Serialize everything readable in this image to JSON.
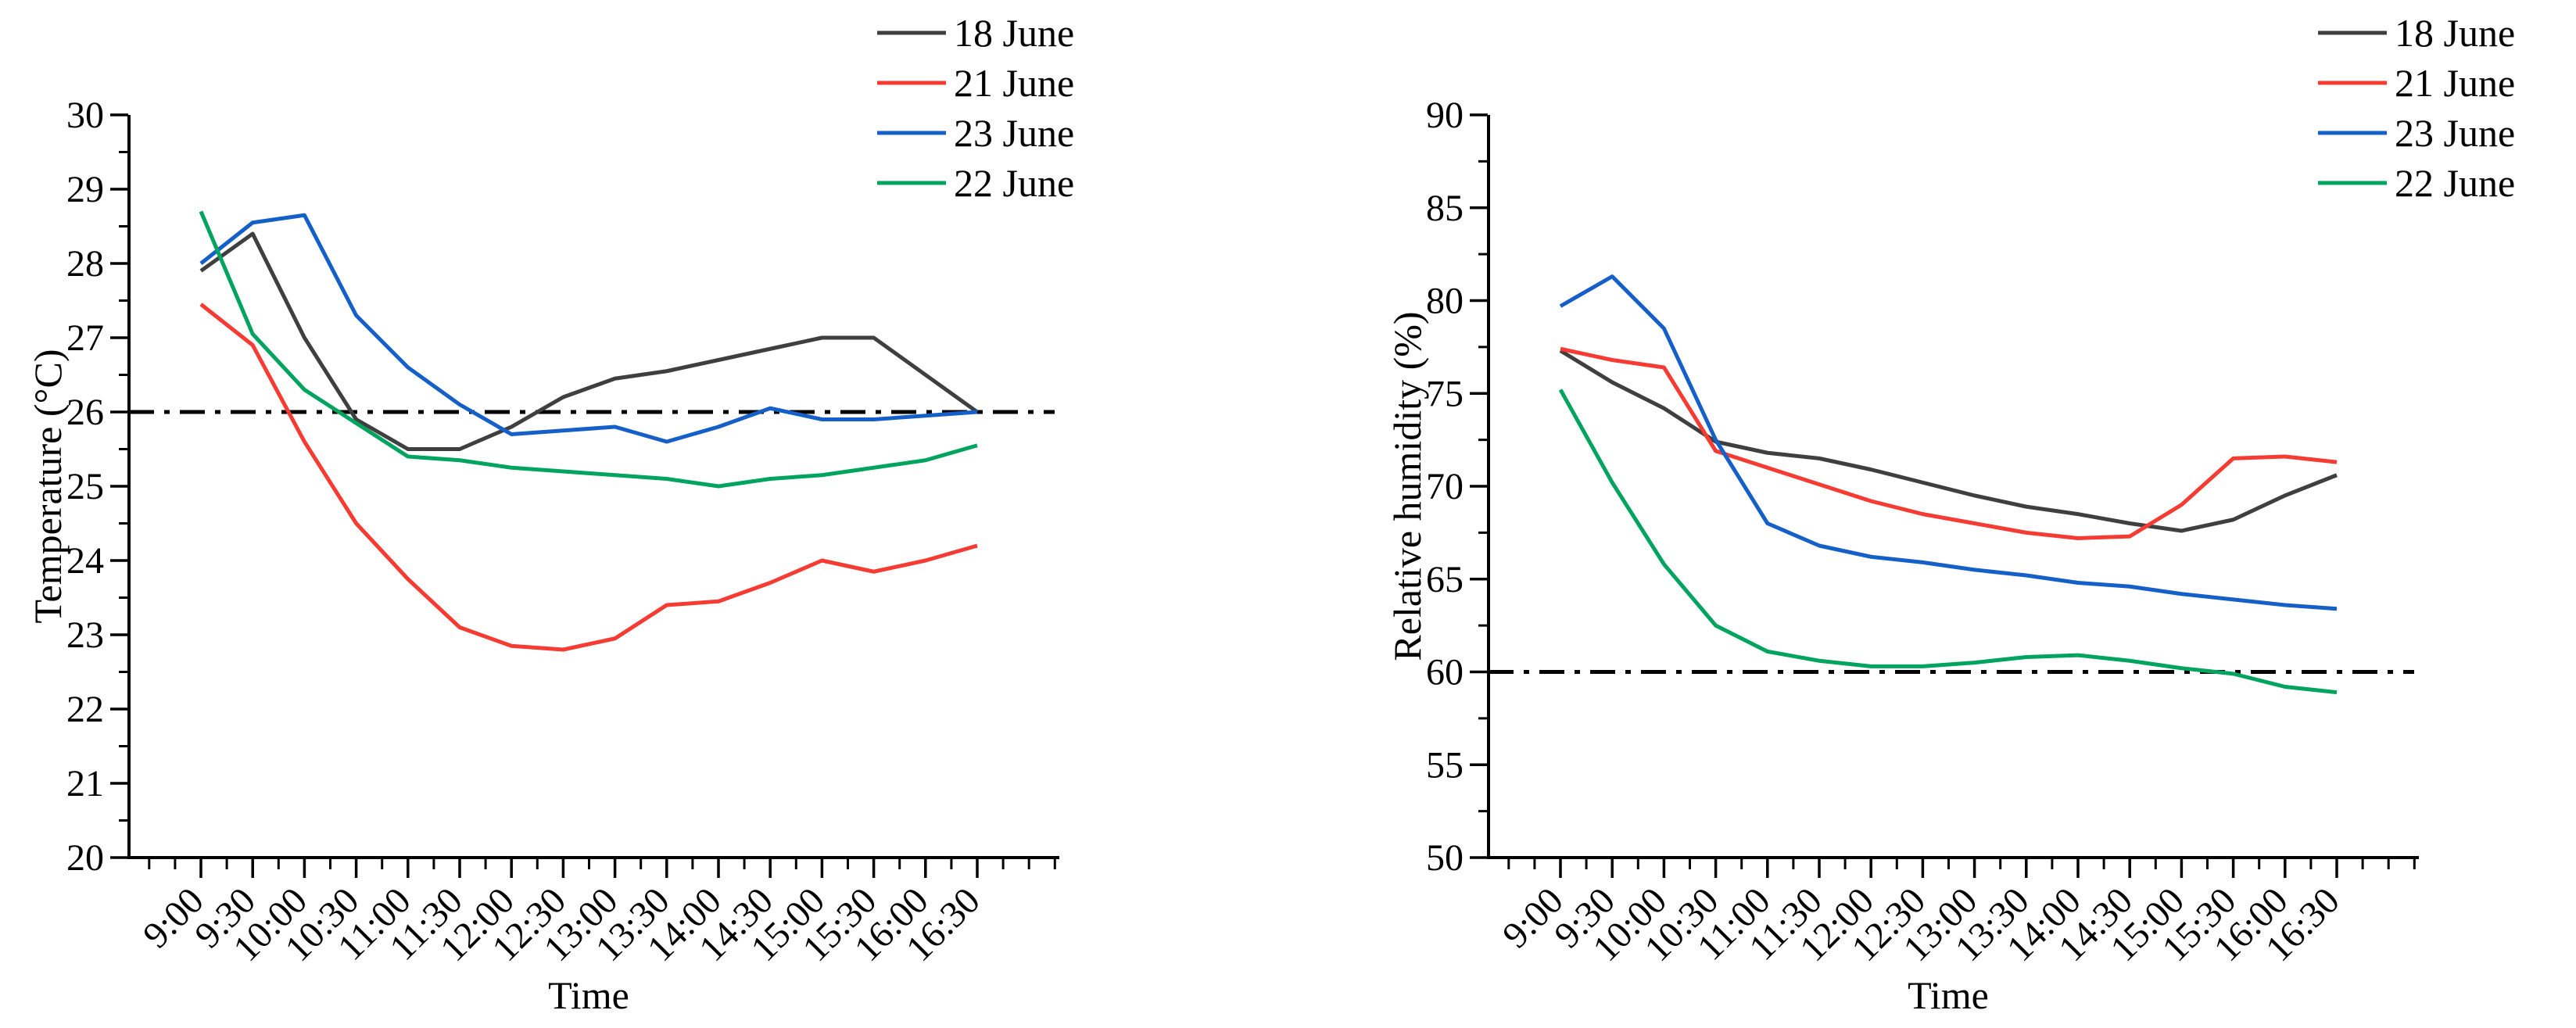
{
  "page": {
    "background": "#ffffff",
    "figure_type": "dual line chart figure"
  },
  "chart_data": [
    {
      "type": "line",
      "title": "",
      "xlabel": "Time",
      "ylabel": "Temperature (°C)",
      "ylim": [
        20,
        30
      ],
      "ytick_major": 1,
      "ytick_minor": 0.5,
      "grid": false,
      "legend_position": "top-right",
      "reference_line": {
        "value": 26,
        "style": "dash-dot",
        "color": "#000000"
      },
      "categories": [
        "9:00",
        "9:30",
        "10:00",
        "10:30",
        "11:00",
        "11:30",
        "12:00",
        "12:30",
        "13:00",
        "13:30",
        "14:00",
        "14:30",
        "15:00",
        "15:30",
        "16:00",
        "16:30"
      ],
      "series": [
        {
          "name": "18 June",
          "color": "#3f3f3f",
          "values": [
            27.9,
            28.4,
            27.0,
            25.9,
            25.5,
            25.5,
            25.8,
            26.2,
            26.45,
            26.55,
            26.7,
            26.85,
            27.0,
            27.0,
            26.5,
            26.0
          ]
        },
        {
          "name": "21 June",
          "color": "#f53b32",
          "values": [
            27.45,
            26.9,
            25.6,
            24.5,
            23.75,
            23.1,
            22.85,
            22.8,
            22.95,
            23.4,
            23.45,
            23.7,
            24.0,
            23.85,
            24.0,
            24.2
          ]
        },
        {
          "name": "23 June",
          "color": "#155fc9",
          "values": [
            28.0,
            28.55,
            28.65,
            27.3,
            26.6,
            26.1,
            25.7,
            25.75,
            25.8,
            25.6,
            25.8,
            26.05,
            25.9,
            25.9,
            25.95,
            26.0
          ]
        },
        {
          "name": "22 June",
          "color": "#00a45f",
          "values": [
            28.7,
            27.05,
            26.3,
            25.85,
            25.4,
            25.35,
            25.25,
            25.2,
            25.15,
            25.1,
            25.0,
            25.1,
            25.15,
            25.25,
            25.35,
            25.55
          ]
        }
      ]
    },
    {
      "type": "line",
      "title": "",
      "xlabel": "Time",
      "ylabel": "Relative humidity (%)",
      "ylim": [
        50,
        90
      ],
      "ytick_major": 5,
      "ytick_minor": 2.5,
      "grid": false,
      "legend_position": "top-right",
      "reference_line": {
        "value": 60,
        "style": "dash-dot",
        "color": "#000000"
      },
      "categories": [
        "9:00",
        "9:30",
        "10:00",
        "10:30",
        "11:00",
        "11:30",
        "12:00",
        "12:30",
        "13:00",
        "13:30",
        "14:00",
        "14:30",
        "15:00",
        "15:30",
        "16:00",
        "16:30"
      ],
      "series": [
        {
          "name": "18 June",
          "color": "#3f3f3f",
          "values": [
            77.3,
            75.6,
            74.2,
            72.4,
            71.8,
            71.5,
            70.9,
            70.2,
            69.5,
            68.9,
            68.5,
            68.0,
            67.6,
            68.2,
            69.5,
            70.6
          ]
        },
        {
          "name": "21 June",
          "color": "#f53b32",
          "values": [
            77.4,
            76.8,
            76.4,
            71.9,
            71.0,
            70.1,
            69.2,
            68.5,
            68.0,
            67.5,
            67.2,
            67.3,
            69.0,
            71.5,
            71.6,
            71.3
          ]
        },
        {
          "name": "23 June",
          "color": "#155fc9",
          "values": [
            79.7,
            81.3,
            78.5,
            72.5,
            68.0,
            66.8,
            66.2,
            65.9,
            65.5,
            65.2,
            64.8,
            64.6,
            64.2,
            63.9,
            63.6,
            63.4
          ]
        },
        {
          "name": "22 June",
          "color": "#00a45f",
          "values": [
            75.2,
            70.2,
            65.8,
            62.5,
            61.1,
            60.6,
            60.3,
            60.3,
            60.5,
            60.8,
            60.9,
            60.6,
            60.2,
            59.9,
            59.2,
            58.9
          ]
        }
      ]
    }
  ]
}
